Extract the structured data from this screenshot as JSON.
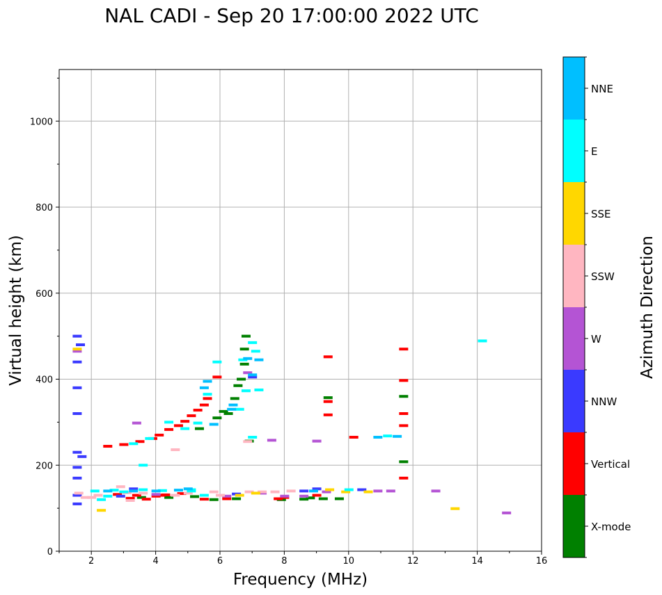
{
  "chart_data": {
    "type": "scatter",
    "title": "NAL CADI - Sep 20 17:00:00 2022 UTC",
    "xlabel": "Frequency (MHz)",
    "ylabel": "Virtual height (km)",
    "xlim": [
      1,
      16
    ],
    "ylim": [
      0,
      1120
    ],
    "xticks": [
      2,
      4,
      6,
      8,
      10,
      12,
      14,
      16
    ],
    "yticks": [
      0,
      200,
      400,
      600,
      800,
      1000
    ],
    "grid": true,
    "colorbar": {
      "label": "Azimuth Direction",
      "categories": [
        "X-mode",
        "Vertical",
        "NNW",
        "W",
        "SSW",
        "SSE",
        "E",
        "NNE"
      ],
      "colors": [
        "#008000",
        "#ff0000",
        "#3a3aff",
        "#b454d4",
        "#ffb6c1",
        "#ffd700",
        "#00ffff",
        "#00bfff"
      ]
    },
    "series": [
      {
        "name": "X-mode",
        "points": [
          [
            3.55,
            125
          ],
          [
            4.4,
            125
          ],
          [
            5.2,
            127
          ],
          [
            5.8,
            120
          ],
          [
            6.5,
            122
          ],
          [
            7.9,
            120
          ],
          [
            8.8,
            124
          ],
          [
            9.2,
            122
          ],
          [
            9.7,
            122
          ],
          [
            5.35,
            285
          ],
          [
            5.9,
            310
          ],
          [
            6.1,
            325
          ],
          [
            6.25,
            320
          ],
          [
            6.45,
            355
          ],
          [
            6.55,
            385
          ],
          [
            6.65,
            400
          ],
          [
            6.75,
            435
          ],
          [
            6.75,
            470
          ],
          [
            6.8,
            500
          ],
          [
            9.35,
            357
          ],
          [
            11.7,
            360
          ],
          [
            11.7,
            208
          ],
          [
            6.9,
            256
          ],
          [
            8.6,
            121
          ]
        ]
      },
      {
        "name": "Vertical",
        "points": [
          [
            2.5,
            244
          ],
          [
            3.0,
            248
          ],
          [
            3.5,
            255
          ],
          [
            3.9,
            262
          ],
          [
            4.1,
            270
          ],
          [
            4.4,
            283
          ],
          [
            4.7,
            292
          ],
          [
            4.9,
            302
          ],
          [
            5.1,
            315
          ],
          [
            5.3,
            328
          ],
          [
            5.5,
            340
          ],
          [
            5.6,
            355
          ],
          [
            2.8,
            132
          ],
          [
            3.2,
            123
          ],
          [
            3.4,
            130
          ],
          [
            3.7,
            121
          ],
          [
            4.0,
            128
          ],
          [
            4.3,
            131
          ],
          [
            4.8,
            134
          ],
          [
            5.5,
            121
          ],
          [
            6.2,
            122
          ],
          [
            7.8,
            122
          ],
          [
            8.0,
            125
          ],
          [
            9.0,
            130
          ],
          [
            10.15,
            265
          ],
          [
            9.35,
            317
          ],
          [
            9.35,
            348
          ],
          [
            9.35,
            452
          ],
          [
            11.7,
            292
          ],
          [
            11.7,
            320
          ],
          [
            11.7,
            397
          ],
          [
            11.7,
            470
          ],
          [
            11.7,
            170
          ],
          [
            4.15,
            130
          ],
          [
            5.9,
            405
          ]
        ]
      },
      {
        "name": "NNW",
        "points": [
          [
            1.55,
            500
          ],
          [
            1.65,
            480
          ],
          [
            1.55,
            440
          ],
          [
            1.55,
            380
          ],
          [
            1.55,
            320
          ],
          [
            1.55,
            230
          ],
          [
            1.7,
            220
          ],
          [
            1.55,
            195
          ],
          [
            1.55,
            170
          ],
          [
            1.55,
            130
          ],
          [
            1.55,
            110
          ],
          [
            8.6,
            140
          ],
          [
            9.0,
            145
          ],
          [
            10.4,
            143
          ],
          [
            2.9,
            128
          ],
          [
            7.0,
            405
          ],
          [
            6.5,
            133
          ],
          [
            3.3,
            145
          ]
        ]
      },
      {
        "name": "W",
        "points": [
          [
            3.4,
            298
          ],
          [
            7.6,
            258
          ],
          [
            9.0,
            256
          ],
          [
            12.7,
            140
          ],
          [
            10.9,
            140
          ],
          [
            11.3,
            140
          ],
          [
            14.9,
            89
          ],
          [
            8.6,
            128
          ],
          [
            6.2,
            128
          ],
          [
            7.3,
            135
          ],
          [
            8.0,
            128
          ],
          [
            6.85,
            415
          ],
          [
            1.55,
            465
          ],
          [
            9.3,
            138
          ],
          [
            4.0,
            132
          ]
        ]
      },
      {
        "name": "SSW",
        "points": [
          [
            2.9,
            150
          ],
          [
            3.1,
            136
          ],
          [
            3.6,
            135
          ],
          [
            4.6,
            130
          ],
          [
            5.0,
            135
          ],
          [
            5.8,
            138
          ],
          [
            6.9,
            138
          ],
          [
            7.3,
            138
          ],
          [
            7.7,
            138
          ],
          [
            8.2,
            140
          ],
          [
            6.85,
            255
          ],
          [
            4.6,
            236
          ],
          [
            1.6,
            135
          ],
          [
            1.8,
            125
          ],
          [
            2.2,
            130
          ],
          [
            3.2,
            118
          ],
          [
            2.0,
            125
          ],
          [
            6.0,
            130
          ]
        ]
      },
      {
        "name": "SSE",
        "points": [
          [
            2.3,
            95
          ],
          [
            7.1,
            135
          ],
          [
            9.9,
            138
          ],
          [
            10.6,
            138
          ],
          [
            9.4,
            143
          ],
          [
            13.3,
            99
          ],
          [
            1.55,
            470
          ],
          [
            6.6,
            130
          ]
        ]
      },
      {
        "name": "E",
        "points": [
          [
            2.5,
            128
          ],
          [
            2.7,
            142
          ],
          [
            3.0,
            138
          ],
          [
            3.6,
            143
          ],
          [
            4.2,
            141
          ],
          [
            5.1,
            143
          ],
          [
            5.5,
            130
          ],
          [
            2.1,
            140
          ],
          [
            2.3,
            120
          ],
          [
            3.3,
            250
          ],
          [
            3.8,
            262
          ],
          [
            4.4,
            300
          ],
          [
            4.9,
            285
          ],
          [
            5.3,
            298
          ],
          [
            5.6,
            365
          ],
          [
            5.9,
            440
          ],
          [
            6.7,
            445
          ],
          [
            7.0,
            485
          ],
          [
            7.1,
            465
          ],
          [
            6.6,
            330
          ],
          [
            7.2,
            375
          ],
          [
            14.15,
            489
          ],
          [
            3.6,
            200
          ],
          [
            10.0,
            143
          ],
          [
            11.2,
            268
          ],
          [
            7.0,
            265
          ],
          [
            5.1,
            140
          ],
          [
            6.8,
            373
          ]
        ]
      },
      {
        "name": "NNE",
        "points": [
          [
            2.5,
            140
          ],
          [
            3.3,
            140
          ],
          [
            4.0,
            140
          ],
          [
            4.7,
            142
          ],
          [
            5.0,
            145
          ],
          [
            5.5,
            380
          ],
          [
            5.6,
            395
          ],
          [
            6.4,
            340
          ],
          [
            6.85,
            448
          ],
          [
            7.2,
            445
          ],
          [
            10.9,
            265
          ],
          [
            11.5,
            267
          ],
          [
            8.9,
            140
          ],
          [
            6.35,
            330
          ],
          [
            7.0,
            410
          ],
          [
            5.8,
            295
          ]
        ]
      }
    ]
  }
}
